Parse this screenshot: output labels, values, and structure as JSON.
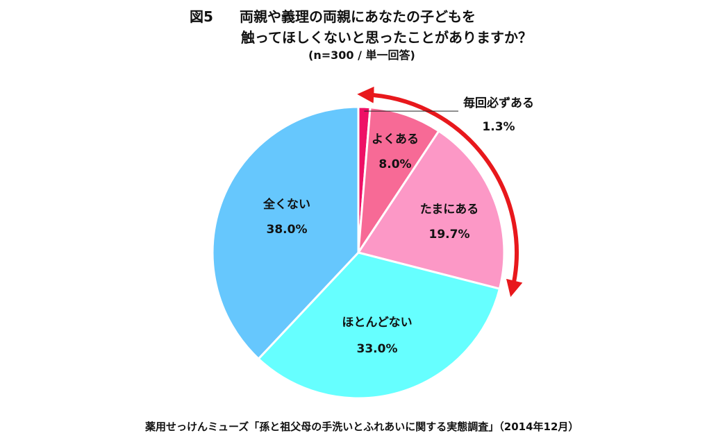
{
  "header": {
    "fig_label": "図5",
    "title_line1": "両親や義理の両親にあなたの子どもを",
    "title_line2": "触ってほしくないと思ったことがありますか？",
    "subtitle": "(n=300  /  単一回答)"
  },
  "chart_data": {
    "type": "pie",
    "title": "両親や義理の両親にあなたの子どもを触ってほしくないと思ったことがありますか？",
    "subtitle": "(n=300  /  単一回答)",
    "slices": [
      {
        "label": "毎回必ずある",
        "value": 1.3,
        "value_label": "1.3%",
        "color": "#ee1166"
      },
      {
        "label": "よくある",
        "value": 8.0,
        "value_label": "8.0%",
        "color": "#f76a96"
      },
      {
        "label": "たまにある",
        "value": 19.7,
        "value_label": "19.7%",
        "color": "#fc98c6"
      },
      {
        "label": "ほとんどない",
        "value": 33.0,
        "value_label": "33.0%",
        "color": "#66ffff"
      },
      {
        "label": "全くない",
        "value": 38.0,
        "value_label": "38.0%",
        "color": "#66c7fd"
      }
    ],
    "annotation": "red curved arrow spanning 毎回必ずある, よくある, たまにある",
    "arrow_color": "#e8181c"
  },
  "footer": {
    "source": "薬用せっけんミューズ「孫と祖父母の手洗いとふれあいに関する実態調査」（2014年12月）"
  }
}
